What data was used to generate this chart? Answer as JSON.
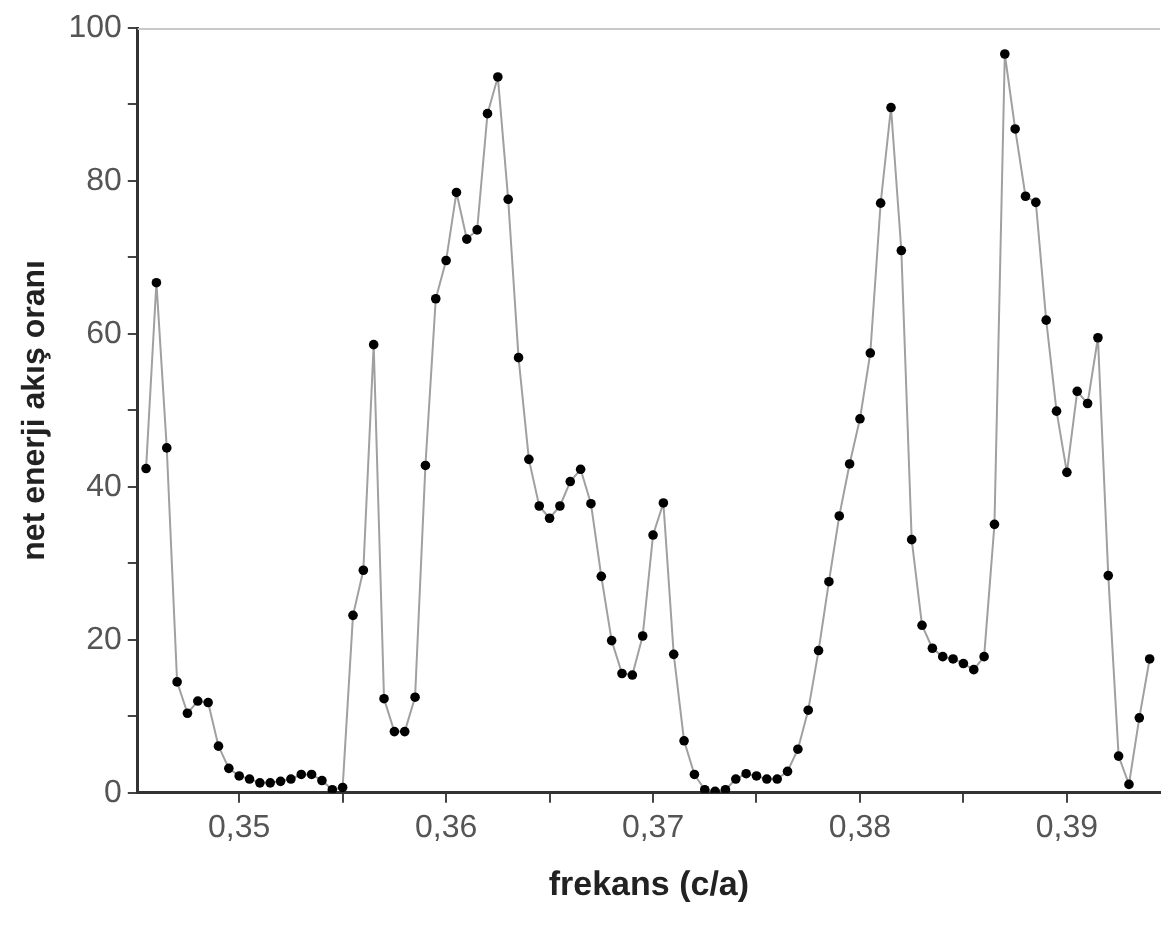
{
  "chart_data": {
    "type": "line",
    "xlabel": "frekans (c/a)",
    "ylabel": "net enerji akış oranı",
    "x": [
      0.3455,
      0.346,
      0.3465,
      0.347,
      0.3475,
      0.348,
      0.3485,
      0.349,
      0.3495,
      0.35,
      0.3505,
      0.351,
      0.3515,
      0.352,
      0.3525,
      0.353,
      0.3535,
      0.354,
      0.3545,
      0.355,
      0.3555,
      0.356,
      0.3565,
      0.357,
      0.3575,
      0.358,
      0.3585,
      0.359,
      0.3595,
      0.36,
      0.3605,
      0.361,
      0.3615,
      0.362,
      0.3625,
      0.363,
      0.3635,
      0.364,
      0.3645,
      0.365,
      0.3655,
      0.366,
      0.3665,
      0.367,
      0.3675,
      0.368,
      0.3685,
      0.369,
      0.3695,
      0.37,
      0.3705,
      0.371,
      0.3715,
      0.372,
      0.3725,
      0.373,
      0.3735,
      0.374,
      0.3745,
      0.375,
      0.3755,
      0.376,
      0.3765,
      0.377,
      0.3775,
      0.378,
      0.3785,
      0.379,
      0.3795,
      0.38,
      0.3805,
      0.381,
      0.3815,
      0.382,
      0.3825,
      0.383,
      0.3835,
      0.384,
      0.3845,
      0.385,
      0.3855,
      0.386,
      0.3865,
      0.387,
      0.3875,
      0.388,
      0.3885,
      0.389,
      0.3895,
      0.39,
      0.3905,
      0.391,
      0.3915,
      0.392,
      0.3925,
      0.393,
      0.3935,
      0.394
    ],
    "series": [
      {
        "color": "#000000",
        "values": [
          42.4,
          66.7,
          45.1,
          14.5,
          10.4,
          12.0,
          11.8,
          6.1,
          3.2,
          2.2,
          1.8,
          1.3,
          1.3,
          1.5,
          1.8,
          2.4,
          2.4,
          1.6,
          0.4,
          0.7,
          23.2,
          29.1,
          58.6,
          12.3,
          8.0,
          8.0,
          12.5,
          42.8,
          64.6,
          69.6,
          78.5,
          72.4,
          73.6,
          88.8,
          93.6,
          77.6,
          56.9,
          43.6,
          37.5,
          35.9,
          37.5,
          40.7,
          42.3,
          37.8,
          28.3,
          19.9,
          15.6,
          15.4,
          20.5,
          33.7,
          37.9,
          18.1,
          6.8,
          2.4,
          0.4,
          0.2,
          0.4,
          1.8,
          2.5,
          2.2,
          1.8,
          1.8,
          2.8,
          5.7,
          10.8,
          18.6,
          27.6,
          36.2,
          43.0,
          48.9,
          57.5,
          77.1,
          89.6,
          70.9,
          33.1,
          21.9,
          18.9,
          17.8,
          17.5,
          16.9,
          16.1,
          17.8,
          35.1,
          96.6,
          86.8,
          78.0,
          77.2,
          61.8,
          49.9,
          41.9,
          52.5,
          50.9,
          59.5,
          28.4,
          4.8,
          1.1,
          9.8,
          17.5
        ]
      }
    ],
    "xlim": [
      0.3451,
      0.3945
    ],
    "xticks": [
      {
        "value": 0.35,
        "label": "0,35"
      },
      {
        "value": 0.355,
        "label": null
      },
      {
        "value": 0.36,
        "label": "0,36"
      },
      {
        "value": 0.365,
        "label": null
      },
      {
        "value": 0.37,
        "label": "0,37"
      },
      {
        "value": 0.375,
        "label": null
      },
      {
        "value": 0.38,
        "label": "0,38"
      },
      {
        "value": 0.385,
        "label": null
      },
      {
        "value": 0.39,
        "label": "0,39"
      }
    ],
    "ylim": [
      0,
      100
    ],
    "yticks": [
      0,
      {
        "value": 10,
        "label": null
      },
      20,
      {
        "value": 30,
        "label": null
      },
      40,
      {
        "value": 50,
        "label": null
      },
      60,
      {
        "value": 70,
        "label": null
      },
      80,
      {
        "value": 90,
        "label": null
      },
      100
    ],
    "marker": "circle",
    "line_style": "solid"
  }
}
